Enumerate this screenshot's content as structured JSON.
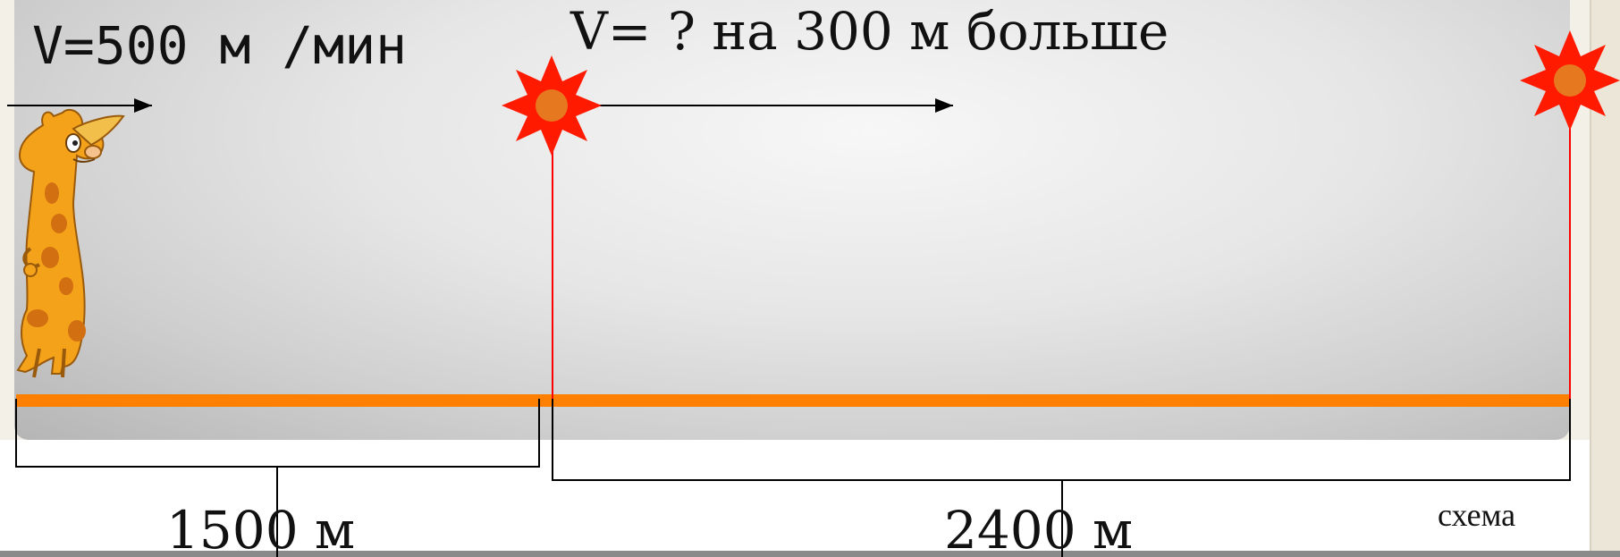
{
  "slide": {
    "speed_label_first": "V=500 м /мин",
    "speed_label_second": "V= ? на 300 м больше",
    "distance_first": "1500 м",
    "distance_second": "2400 м",
    "caption": "схема"
  },
  "colors": {
    "road": "#ff7f00",
    "sun": "#ff1a00",
    "sun_center": "#e6791f",
    "marker_line": "#ff0000",
    "giraffe": "#f4a21a",
    "giraffe_spots": "#d16f11"
  },
  "icons": {
    "start_character": "giraffe-icon",
    "middle_marker": "sun-icon",
    "end_marker": "sun-icon"
  }
}
